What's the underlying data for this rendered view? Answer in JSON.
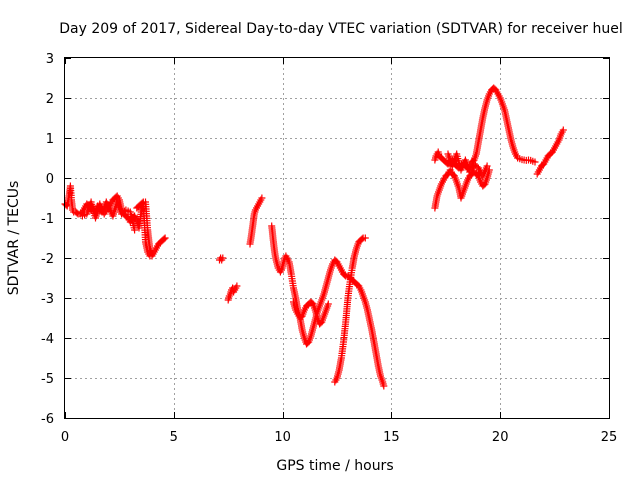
{
  "chart_data": {
    "type": "scatter",
    "title": "Day 209 of 2017, Sidereal Day-to-day VTEC variation (SDTVAR) for receiver huel",
    "xlabel": "GPS time / hours",
    "ylabel": "SDTVAR / TECUs",
    "xlim": [
      0,
      25
    ],
    "ylim": [
      -6,
      3
    ],
    "xticks": [
      0,
      5,
      10,
      15,
      20,
      25
    ],
    "yticks": [
      -6,
      -5,
      -4,
      -3,
      -2,
      -1,
      0,
      1,
      2,
      3
    ],
    "x_tick_labels": [
      "0",
      "5",
      "10",
      "15",
      "20",
      "25"
    ],
    "y_tick_labels": [
      "-6",
      "-5",
      "-4",
      "-3",
      "-2",
      "-1",
      "0",
      "1",
      "2",
      "3"
    ],
    "grid": true,
    "marker": "+",
    "color": "#ff0000",
    "series": [
      {
        "name": "SDTVAR",
        "segments": [
          {
            "x": [
              0.0,
              0.1,
              0.2,
              0.25,
              0.3,
              0.35,
              0.4,
              0.5,
              0.6,
              0.7,
              0.8,
              0.9,
              1.0,
              1.1,
              1.2,
              1.3,
              1.4,
              1.5,
              1.6,
              1.7,
              1.8,
              1.9,
              2.0,
              2.1,
              2.2,
              2.3,
              2.4,
              2.5,
              2.6,
              2.7,
              2.8,
              2.9,
              3.0,
              3.1,
              3.2,
              3.3,
              3.4,
              3.5,
              3.6,
              3.7,
              3.8,
              3.9,
              4.0,
              4.1,
              4.2,
              4.3,
              4.4,
              4.5,
              4.6
            ],
            "y": [
              -0.65,
              -0.7,
              -0.4,
              -0.2,
              -0.55,
              -0.8,
              -0.85,
              -0.85,
              -0.9,
              -0.9,
              -0.85,
              -0.75,
              -0.65,
              -0.7,
              -0.8,
              -0.75,
              -0.9,
              -0.7,
              -0.8,
              -0.85,
              -0.75,
              -0.6,
              -0.75,
              -0.65,
              -0.55,
              -0.5,
              -0.45,
              -0.55,
              -0.8,
              -0.9,
              -0.95,
              -1.0,
              -1.1,
              -1.0,
              -0.95,
              -1.05,
              -1.25,
              -0.85,
              -0.65,
              -1.6,
              -1.85,
              -1.95,
              -1.95,
              -1.85,
              -1.75,
              -1.65,
              -1.6,
              -1.55,
              -1.5
            ]
          },
          {
            "x": [
              0.8,
              1.0,
              1.2,
              1.4,
              1.6,
              1.8,
              2.0,
              2.2,
              2.4,
              2.6,
              2.8,
              3.0,
              3.2
            ],
            "y": [
              -0.95,
              -0.9,
              -0.6,
              -1.0,
              -0.65,
              -0.9,
              -0.7,
              -0.95,
              -0.6,
              -0.9,
              -0.8,
              -0.85,
              -1.3
            ]
          },
          {
            "x": [
              3.3,
              3.4,
              3.5,
              3.6,
              3.7,
              3.75,
              3.8,
              3.85,
              3.9,
              3.95,
              4.0
            ],
            "y": [
              -0.75,
              -0.7,
              -0.65,
              -0.6,
              -0.6,
              -0.95,
              -1.3,
              -1.55,
              -1.75,
              -1.85,
              -1.9
            ]
          },
          {
            "x": [
              7.1,
              7.15,
              7.2,
              7.25
            ],
            "y": [
              -2.05,
              -2.0,
              -2.05,
              -2.0
            ]
          },
          {
            "x": [
              7.5,
              7.55,
              7.6,
              7.65,
              7.7,
              7.75,
              7.8,
              7.85,
              7.9
            ],
            "y": [
              -3.05,
              -2.95,
              -2.9,
              -2.8,
              -2.75,
              -2.85,
              -2.8,
              -2.75,
              -2.7
            ]
          },
          {
            "x": [
              8.5,
              8.55,
              8.6,
              8.65,
              8.7,
              8.75,
              8.8,
              8.85,
              8.9,
              8.95,
              9.0,
              9.05
            ],
            "y": [
              -1.65,
              -1.5,
              -1.3,
              -1.1,
              -0.9,
              -0.8,
              -0.75,
              -0.7,
              -0.65,
              -0.6,
              -0.55,
              -0.5
            ]
          },
          {
            "x": [
              9.5,
              9.55,
              9.6,
              9.65,
              9.7,
              9.75,
              9.8,
              9.85,
              9.9,
              9.95,
              10.0,
              10.05,
              10.1,
              10.15,
              10.2,
              10.3,
              10.4,
              10.5,
              10.6,
              10.7,
              10.8,
              10.9,
              11.0,
              11.1,
              11.2,
              11.3,
              11.4,
              11.5,
              11.6,
              11.7,
              11.8,
              11.9,
              12.0,
              12.1,
              12.2,
              12.3,
              12.4,
              12.5,
              12.6,
              12.7,
              12.8,
              12.9,
              13.0,
              13.1,
              13.2,
              13.3,
              13.4,
              13.5,
              13.6,
              13.7,
              13.8,
              13.9,
              14.0,
              14.1,
              14.2,
              14.3,
              14.4,
              14.5,
              14.6,
              14.65
            ],
            "y": [
              -1.2,
              -1.45,
              -1.7,
              -1.9,
              -2.05,
              -2.15,
              -2.25,
              -2.3,
              -2.35,
              -2.3,
              -2.2,
              -2.1,
              -2.0,
              -1.95,
              -2.0,
              -2.1,
              -2.4,
              -2.75,
              -3.0,
              -3.3,
              -3.5,
              -3.8,
              -4.0,
              -4.15,
              -4.1,
              -3.95,
              -3.75,
              -3.55,
              -3.35,
              -3.2,
              -3.05,
              -2.9,
              -2.7,
              -2.5,
              -2.3,
              -2.15,
              -2.05,
              -2.1,
              -2.2,
              -2.3,
              -2.4,
              -2.45,
              -2.45,
              -2.5,
              -2.55,
              -2.6,
              -2.65,
              -2.7,
              -2.8,
              -2.95,
              -3.1,
              -3.3,
              -3.55,
              -3.8,
              -4.1,
              -4.4,
              -4.7,
              -4.95,
              -5.1,
              -5.2
            ]
          },
          {
            "x": [
              10.5,
              10.6,
              10.7,
              10.8,
              10.9,
              11.0,
              11.1,
              11.2,
              11.3,
              11.4,
              11.5,
              11.6,
              11.7,
              11.8,
              11.9,
              12.0,
              12.1
            ],
            "y": [
              -3.1,
              -3.3,
              -3.4,
              -3.5,
              -3.45,
              -3.3,
              -3.2,
              -3.15,
              -3.1,
              -3.15,
              -3.3,
              -3.5,
              -3.65,
              -3.6,
              -3.45,
              -3.3,
              -3.15
            ]
          },
          {
            "x": [
              12.4,
              12.5,
              12.6,
              12.7,
              12.8,
              12.9,
              13.0,
              13.1,
              13.2,
              13.3,
              13.4,
              13.5,
              13.6,
              13.7,
              13.8
            ],
            "y": [
              -5.1,
              -5.0,
              -4.8,
              -4.5,
              -4.1,
              -3.6,
              -3.0,
              -2.6,
              -2.25,
              -1.95,
              -1.75,
              -1.6,
              -1.55,
              -1.5,
              -1.5
            ]
          },
          {
            "x": [
              17.0,
              17.05,
              17.1,
              17.15,
              17.2,
              17.3,
              17.4,
              17.5,
              17.6,
              17.7,
              17.8,
              17.9,
              18.0,
              18.1,
              18.2,
              18.3,
              18.4,
              18.5,
              18.6,
              18.7,
              18.8,
              18.9,
              19.0,
              19.1,
              19.2,
              19.3,
              19.4,
              19.5,
              19.6,
              19.7,
              19.8,
              19.9,
              20.0,
              20.1,
              20.2,
              20.3,
              20.4,
              20.5,
              20.6,
              20.7,
              20.8,
              20.9,
              21.0,
              21.1,
              21.2,
              21.3,
              21.4,
              21.5,
              21.6
            ],
            "y": [
              0.45,
              0.55,
              0.6,
              0.65,
              0.55,
              0.5,
              0.45,
              0.4,
              0.35,
              0.4,
              0.45,
              0.35,
              0.3,
              0.25,
              0.3,
              0.35,
              0.3,
              0.25,
              0.3,
              0.4,
              0.45,
              0.6,
              0.9,
              1.2,
              1.5,
              1.75,
              1.95,
              2.1,
              2.2,
              2.25,
              2.2,
              2.1,
              2.0,
              1.85,
              1.7,
              1.45,
              1.2,
              0.95,
              0.75,
              0.6,
              0.5,
              0.48,
              0.46,
              0.45,
              0.44,
              0.45,
              0.44,
              0.42,
              0.4
            ]
          },
          {
            "x": [
              17.0,
              17.05,
              17.1,
              17.2,
              17.3,
              17.4,
              17.5,
              17.6,
              17.7,
              17.8,
              17.9,
              18.0,
              18.1,
              18.2,
              18.3,
              18.4,
              18.5,
              18.6,
              18.7,
              18.8,
              18.9,
              19.0,
              19.1,
              19.2,
              19.3,
              19.4,
              19.5
            ],
            "y": [
              -0.75,
              -0.6,
              -0.45,
              -0.3,
              -0.15,
              -0.05,
              0.05,
              0.1,
              0.2,
              0.1,
              0.05,
              -0.1,
              -0.25,
              -0.5,
              -0.35,
              -0.2,
              -0.05,
              0.05,
              0.1,
              0.15,
              0.1,
              0.05,
              -0.1,
              -0.2,
              -0.15,
              0.0,
              0.2
            ]
          },
          {
            "x": [
              17.6,
              17.8,
              18.0,
              18.2,
              18.4,
              18.6,
              18.8,
              19.0,
              19.2,
              19.4
            ],
            "y": [
              0.6,
              0.3,
              0.6,
              0.2,
              0.45,
              0.15,
              0.35,
              0.25,
              0.05,
              0.3
            ]
          },
          {
            "x": [
              21.7,
              21.8,
              21.9,
              22.0,
              22.1,
              22.2,
              22.3,
              22.4,
              22.5,
              22.6,
              22.7,
              22.8,
              22.9
            ],
            "y": [
              0.1,
              0.2,
              0.3,
              0.35,
              0.45,
              0.55,
              0.6,
              0.65,
              0.75,
              0.85,
              0.95,
              1.1,
              1.2
            ]
          }
        ]
      }
    ]
  }
}
